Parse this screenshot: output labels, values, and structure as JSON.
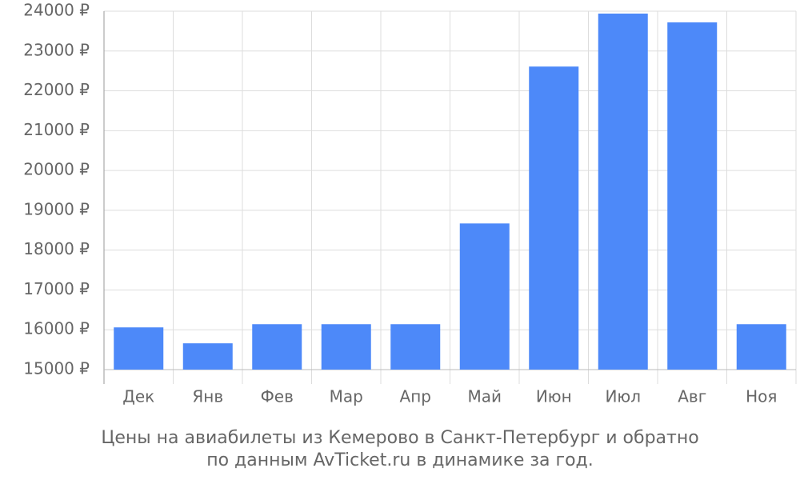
{
  "chart_data": {
    "type": "bar",
    "title": [
      "Цены на авиабилеты из Кемерово в Санкт-Петербург и обратно",
      "по данным AvTicket.ru в динамике за год."
    ],
    "categories": [
      "Дек",
      "Янв",
      "Фев",
      "Мар",
      "Апр",
      "Май",
      "Июн",
      "Июл",
      "Авг",
      "Ноя"
    ],
    "values": [
      16060,
      15660,
      16140,
      16140,
      16140,
      18670,
      22610,
      23940,
      23720,
      16140
    ],
    "color": "#4d89f9",
    "ylim": [
      15000,
      24000
    ],
    "yticks": [
      {
        "value": 15000,
        "label": "15000 ₽"
      },
      {
        "value": 16000,
        "label": "16000 ₽"
      },
      {
        "value": 17000,
        "label": "17000 ₽"
      },
      {
        "value": 18000,
        "label": "18000 ₽"
      },
      {
        "value": 19000,
        "label": "19000 ₽"
      },
      {
        "value": 20000,
        "label": "20000 ₽"
      },
      {
        "value": 21000,
        "label": "21000 ₽"
      },
      {
        "value": 22000,
        "label": "22000 ₽"
      },
      {
        "value": 23000,
        "label": "23000 ₽"
      },
      {
        "value": 24000,
        "label": "24000 ₽"
      }
    ],
    "grid": true
  }
}
